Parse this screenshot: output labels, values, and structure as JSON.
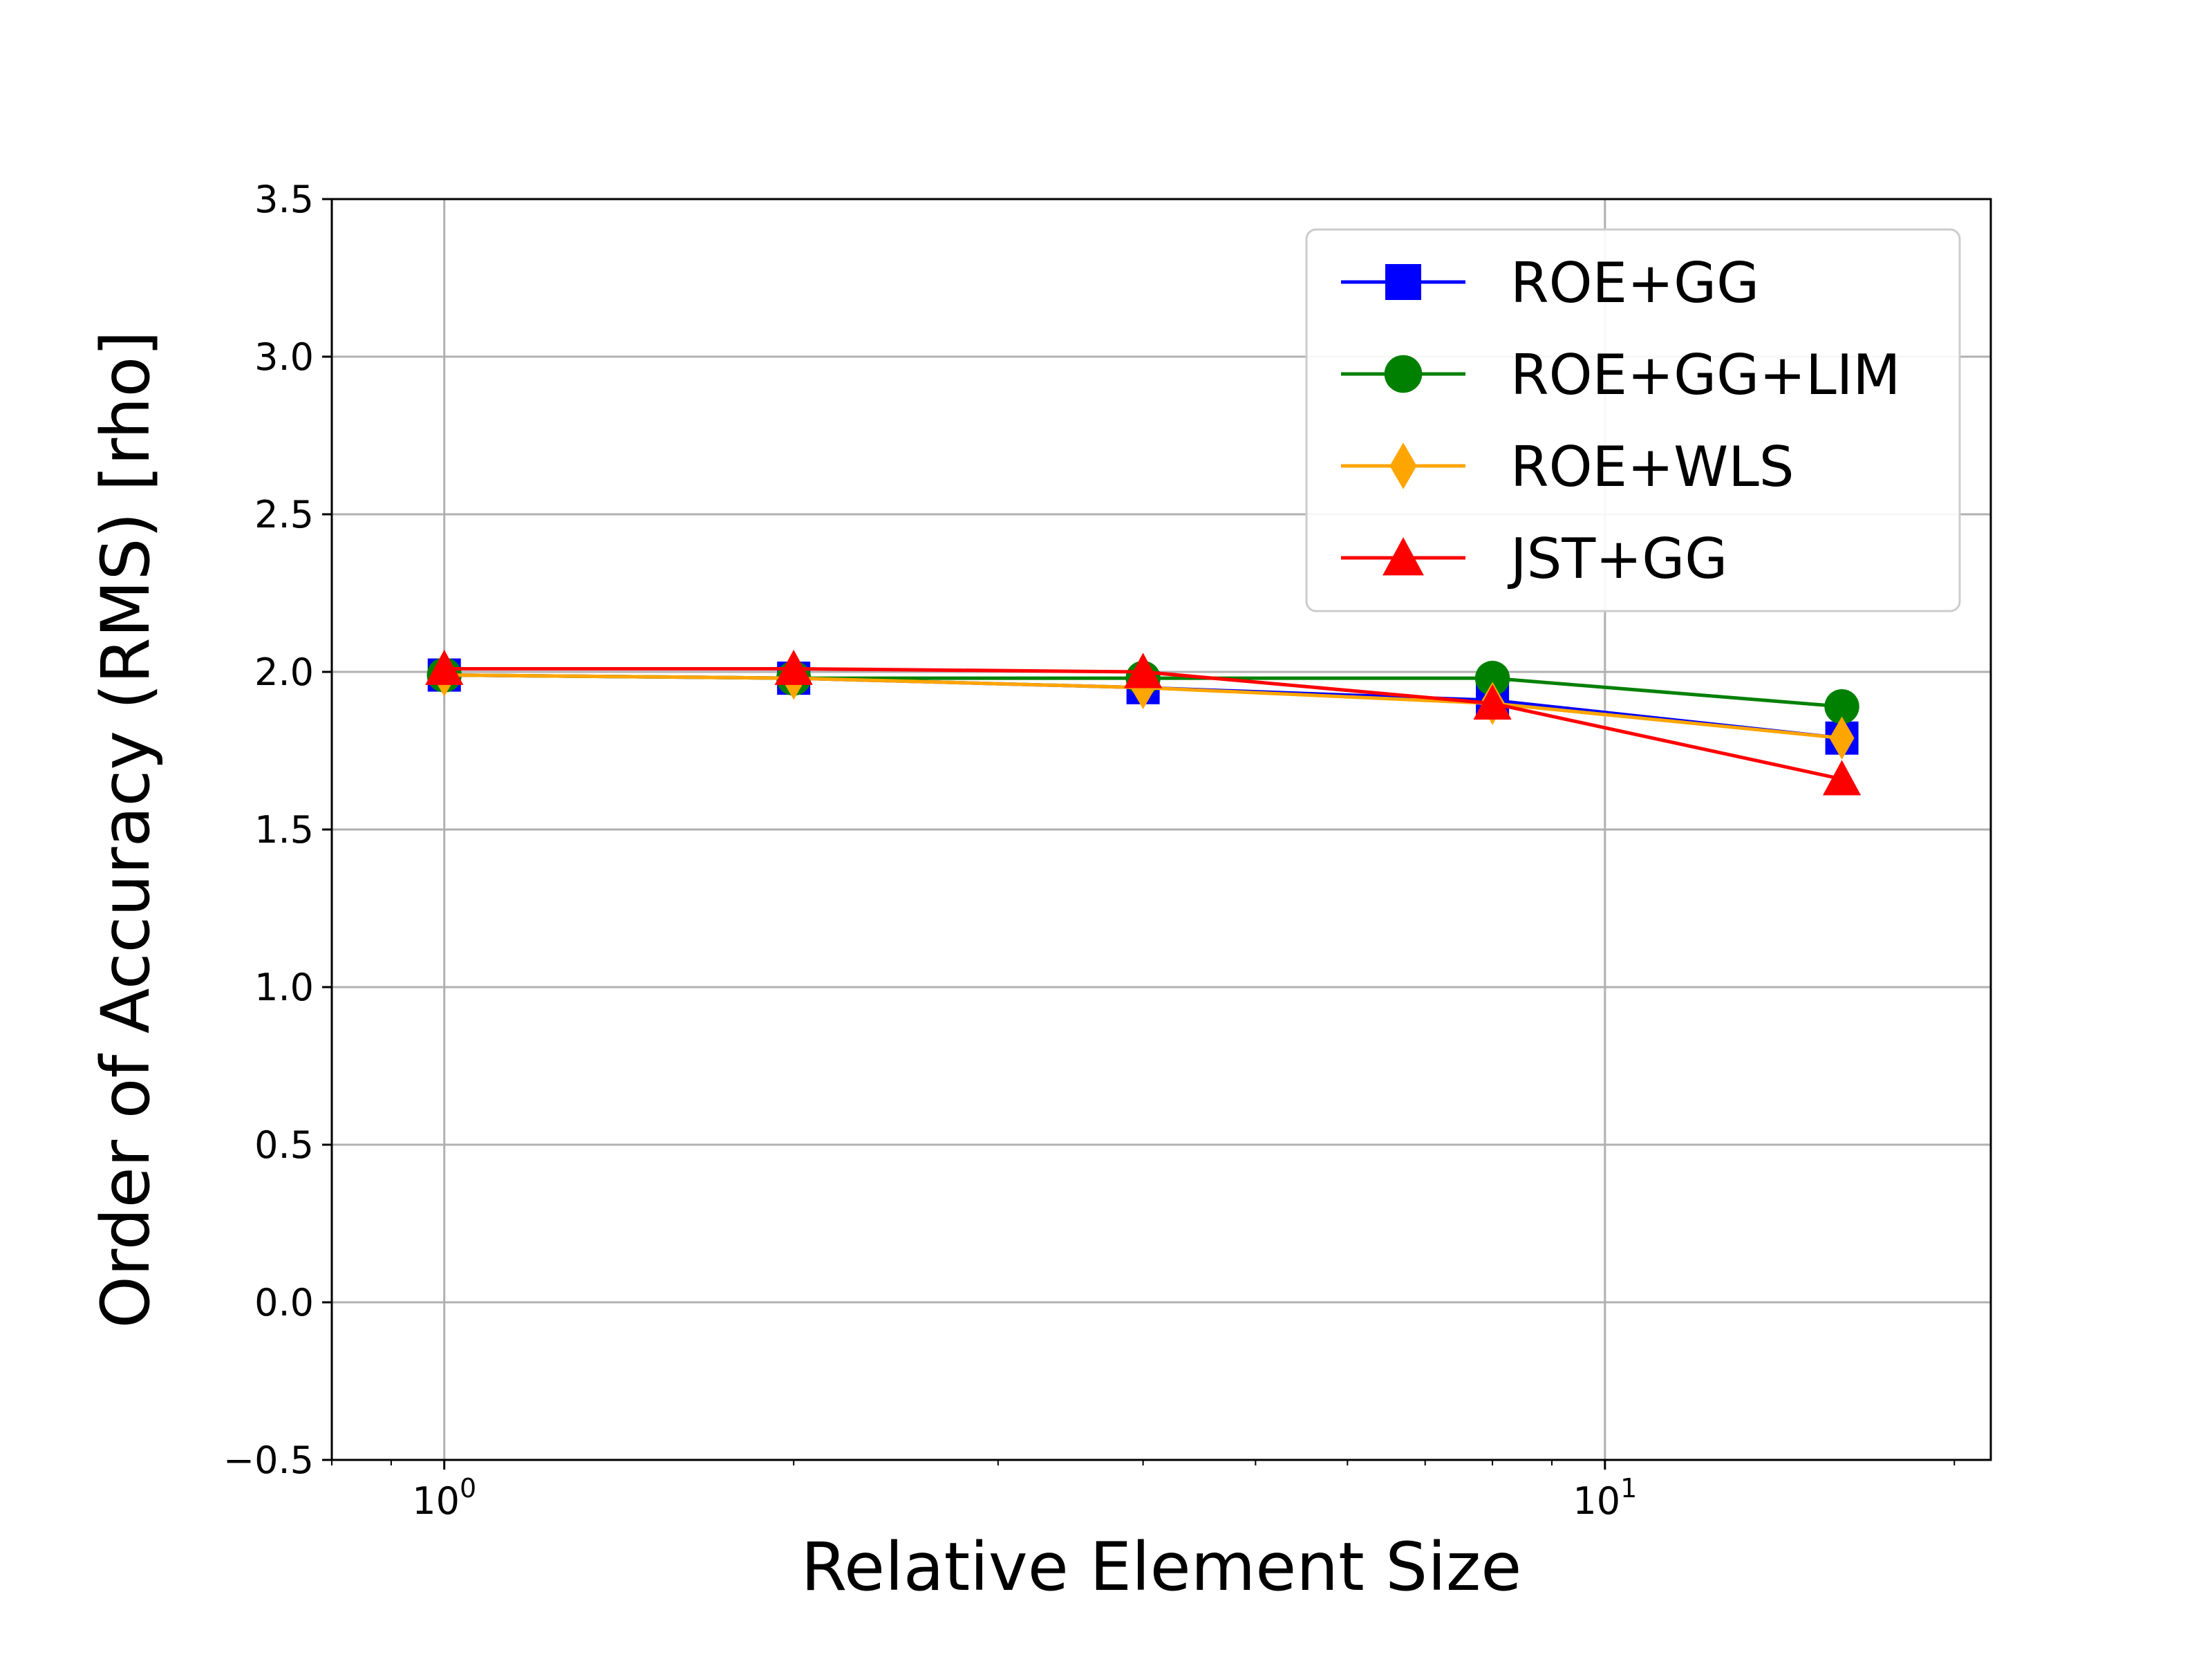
{
  "chart_data": {
    "type": "line",
    "title": "",
    "xlabel": "Relative Element Size",
    "ylabel": "Order of Accuracy (RMS) [rho]",
    "xscale": "log",
    "xlim": [
      0.8,
      21.5
    ],
    "ylim": [
      -0.5,
      3.5
    ],
    "grid": true,
    "legend_position": "top-right",
    "x": [
      1,
      2,
      4,
      8,
      16
    ],
    "x_tick_labels": [
      {
        "value": 1,
        "base": "10",
        "exp": "0"
      },
      {
        "value": 10,
        "base": "10",
        "exp": "1"
      }
    ],
    "y_ticks": [
      -0.5,
      0.0,
      0.5,
      1.0,
      1.5,
      2.0,
      2.5,
      3.0,
      3.5
    ],
    "y_tick_labels": [
      "−0.5",
      "0.0",
      "0.5",
      "1.0",
      "1.5",
      "2.0",
      "2.5",
      "3.0",
      "3.5"
    ],
    "series": [
      {
        "name": "ROE+GG",
        "color": "#0000ff",
        "marker": "square",
        "values": [
          1.99,
          1.98,
          1.95,
          1.91,
          1.79
        ]
      },
      {
        "name": "ROE+GG+LIM",
        "color": "#008000",
        "marker": "circle",
        "values": [
          1.99,
          1.98,
          1.98,
          1.98,
          1.89
        ]
      },
      {
        "name": "ROE+WLS",
        "color": "#ffa500",
        "marker": "diamond",
        "values": [
          1.99,
          1.98,
          1.95,
          1.9,
          1.79
        ]
      },
      {
        "name": "JST+GG",
        "color": "#ff0000",
        "marker": "triangle",
        "values": [
          2.01,
          2.01,
          2.0,
          1.9,
          1.66
        ]
      }
    ]
  }
}
